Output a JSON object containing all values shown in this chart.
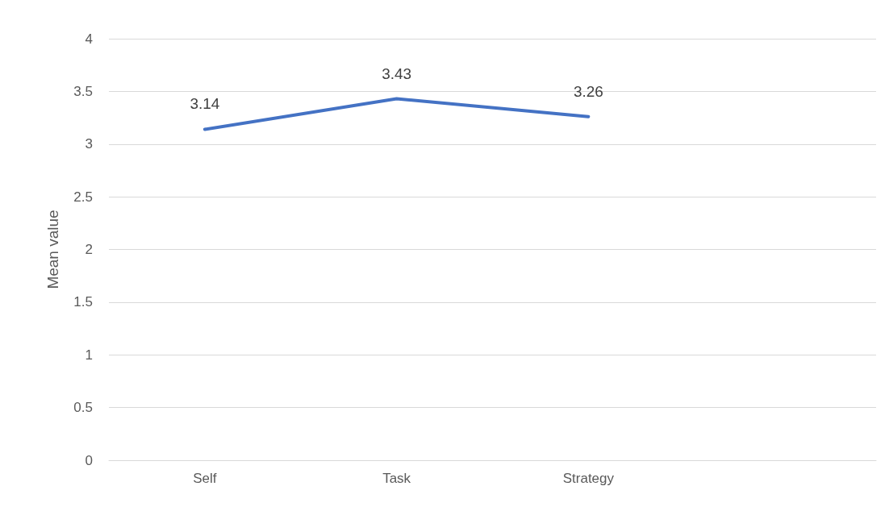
{
  "chart_data": {
    "type": "line",
    "ylabel": "Mean value",
    "categories": [
      "Self",
      "Task",
      "Strategy",
      null
    ],
    "series": [
      {
        "color": "#4472c4",
        "values": [
          3.14,
          3.43,
          3.26,
          null
        ]
      }
    ],
    "ylim": [
      0,
      4
    ],
    "yticks": [
      0,
      0.5,
      1,
      1.5,
      2,
      2.5,
      3,
      3.5,
      4
    ],
    "grid": "y",
    "marker": "none",
    "line_style": "solid",
    "data_labels": true
  }
}
